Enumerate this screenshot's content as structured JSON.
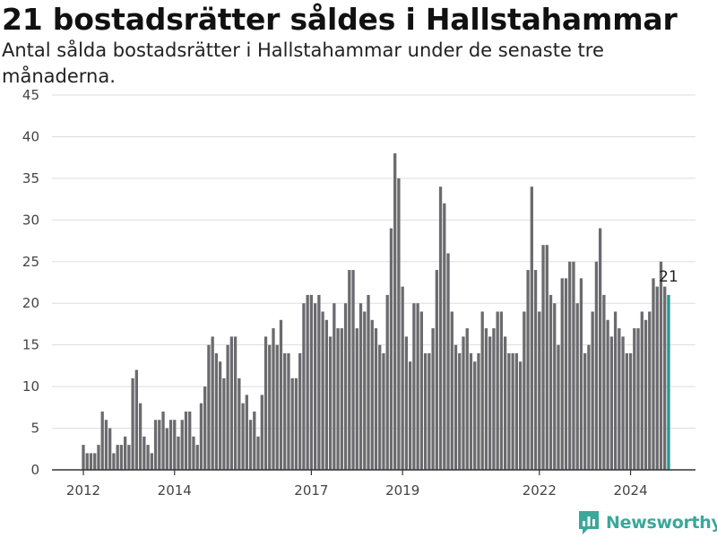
{
  "header": {
    "title": "21 bostadsrätter såldes i Hallstahammar",
    "subtitle": "Antal sålda bostadsrätter i Hallstahammar under de senaste tre månaderna."
  },
  "brand": {
    "name": "Newsworthy",
    "color": "#3aa89b"
  },
  "chart_data": {
    "type": "bar",
    "title": "21 bostadsrätter såldes i Hallstahammar",
    "subtitle": "Antal sålda bostadsrätter i Hallstahammar under de senaste tre månaderna.",
    "xlabel": "",
    "ylabel": "",
    "ylim": [
      0,
      45
    ],
    "yticks": [
      0,
      5,
      10,
      15,
      20,
      25,
      30,
      35,
      40,
      45
    ],
    "xtick_labels": [
      "2012",
      "2014",
      "2017",
      "2019",
      "2022",
      "2024"
    ],
    "xtick_positions": [
      0,
      24,
      60,
      84,
      120,
      144
    ],
    "grid": true,
    "bar_color": "#6b6b6f",
    "highlight_color": "#1e9a8f",
    "highlight_label": "21",
    "highlight_index": 154,
    "x_start": "2012-01",
    "values": [
      3,
      2,
      2,
      2,
      3,
      7,
      6,
      5,
      2,
      3,
      3,
      4,
      3,
      11,
      12,
      8,
      4,
      3,
      2,
      6,
      6,
      7,
      5,
      6,
      6,
      4,
      6,
      7,
      7,
      4,
      3,
      8,
      10,
      15,
      16,
      14,
      13,
      11,
      15,
      16,
      16,
      11,
      8,
      9,
      6,
      7,
      4,
      9,
      16,
      15,
      17,
      15,
      18,
      14,
      14,
      11,
      11,
      14,
      20,
      21,
      21,
      20,
      21,
      19,
      18,
      16,
      20,
      17,
      17,
      20,
      24,
      24,
      17,
      20,
      19,
      21,
      18,
      17,
      15,
      14,
      21,
      29,
      38,
      35,
      22,
      16,
      13,
      20,
      20,
      19,
      14,
      14,
      17,
      24,
      34,
      32,
      26,
      19,
      15,
      14,
      16,
      17,
      14,
      13,
      14,
      19,
      17,
      16,
      17,
      19,
      19,
      16,
      14,
      14,
      14,
      13,
      19,
      24,
      34,
      24,
      19,
      27,
      27,
      21,
      20,
      15,
      23,
      23,
      25,
      25,
      20,
      23,
      14,
      15,
      19,
      25,
      29,
      21,
      18,
      16,
      19,
      17,
      16,
      14,
      14,
      17,
      17,
      19,
      18,
      19,
      23,
      22,
      25,
      22,
      21
    ]
  }
}
